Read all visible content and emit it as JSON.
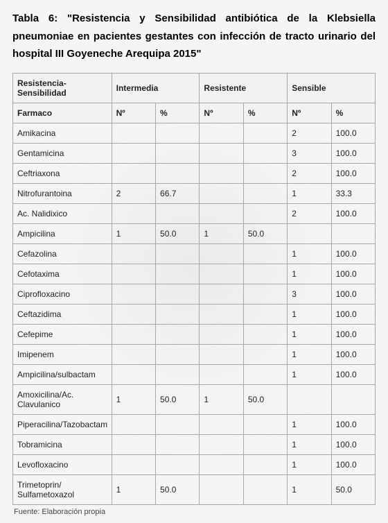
{
  "title": "Tabla 6: \"Resistencia y Sensibilidad antibiótica de la Klebsiella pneumoniae en pacientes gestantes con infección de tracto urinario del hospital III Goyeneche Arequipa 2015\"",
  "footnote": "Fuente: Elaboración propia",
  "headers": {
    "rowLabel": "Resistencia-Sensibilidad",
    "sub": "Farmaco",
    "groups": [
      {
        "label": "Intermedia",
        "n": "Nº",
        "p": "%"
      },
      {
        "label": "Resistente",
        "n": "Nº",
        "p": "%"
      },
      {
        "label": "Sensible",
        "n": "Nº",
        "p": "%"
      }
    ]
  },
  "rows": [
    {
      "label": "Amikacina",
      "i_n": "",
      "i_p": "",
      "r_n": "",
      "r_p": "",
      "s_n": "2",
      "s_p": "100.0"
    },
    {
      "label": "Gentamicina",
      "i_n": "",
      "i_p": "",
      "r_n": "",
      "r_p": "",
      "s_n": "3",
      "s_p": "100.0"
    },
    {
      "label": "Ceftriaxona",
      "i_n": "",
      "i_p": "",
      "r_n": "",
      "r_p": "",
      "s_n": "2",
      "s_p": "100.0"
    },
    {
      "label": "Nitrofurantoina",
      "i_n": "2",
      "i_p": "66.7",
      "r_n": "",
      "r_p": "",
      "s_n": "1",
      "s_p": "33.3"
    },
    {
      "label": "Ac. Nalidixico",
      "i_n": "",
      "i_p": "",
      "r_n": "",
      "r_p": "",
      "s_n": "2",
      "s_p": "100.0"
    },
    {
      "label": "Ampicilina",
      "i_n": "1",
      "i_p": "50.0",
      "r_n": "1",
      "r_p": "50.0",
      "s_n": "",
      "s_p": ""
    },
    {
      "label": "Cefazolina",
      "i_n": "",
      "i_p": "",
      "r_n": "",
      "r_p": "",
      "s_n": "1",
      "s_p": "100.0"
    },
    {
      "label": "Cefotaxima",
      "i_n": "",
      "i_p": "",
      "r_n": "",
      "r_p": "",
      "s_n": "1",
      "s_p": "100.0"
    },
    {
      "label": "Ciprofloxacino",
      "i_n": "",
      "i_p": "",
      "r_n": "",
      "r_p": "",
      "s_n": "3",
      "s_p": "100.0"
    },
    {
      "label": "Ceftazidima",
      "i_n": "",
      "i_p": "",
      "r_n": "",
      "r_p": "",
      "s_n": "1",
      "s_p": "100.0"
    },
    {
      "label": "Cefepime",
      "i_n": "",
      "i_p": "",
      "r_n": "",
      "r_p": "",
      "s_n": "1",
      "s_p": "100.0"
    },
    {
      "label": "Imipenem",
      "i_n": "",
      "i_p": "",
      "r_n": "",
      "r_p": "",
      "s_n": "1",
      "s_p": "100.0"
    },
    {
      "label": "Ampicilina/sulbactam",
      "i_n": "",
      "i_p": "",
      "r_n": "",
      "r_p": "",
      "s_n": "1",
      "s_p": "100.0"
    },
    {
      "label": "Amoxicilina/Ac. Clavulanico",
      "i_n": "1",
      "i_p": "50.0",
      "r_n": "1",
      "r_p": "50.0",
      "s_n": "",
      "s_p": ""
    },
    {
      "label": "Piperacilina/Tazobactam",
      "i_n": "",
      "i_p": "",
      "r_n": "",
      "r_p": "",
      "s_n": "1",
      "s_p": "100.0"
    },
    {
      "label": "Tobramicina",
      "i_n": "",
      "i_p": "",
      "r_n": "",
      "r_p": "",
      "s_n": "1",
      "s_p": "100.0"
    },
    {
      "label": "Levofloxacino",
      "i_n": "",
      "i_p": "",
      "r_n": "",
      "r_p": "",
      "s_n": "1",
      "s_p": "100.0"
    },
    {
      "label": "Trimetoprin/ Sulfametoxazol",
      "i_n": "1",
      "i_p": "50.0",
      "r_n": "",
      "r_p": "",
      "s_n": "1",
      "s_p": "50.0"
    }
  ],
  "style": {
    "borderColor": "#a8a8a8",
    "fontSize": 12,
    "titleFontSize": 15
  }
}
